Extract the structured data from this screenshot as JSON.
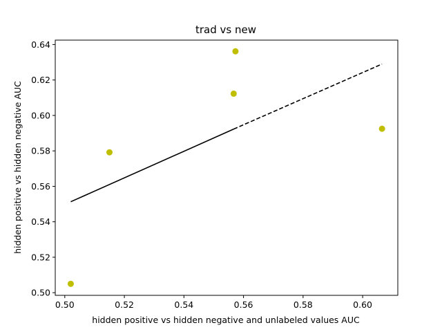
{
  "chart_data": {
    "type": "scatter",
    "title": "trad vs new",
    "xlabel": "hidden positive vs hidden negative and unlabeled values AUC",
    "ylabel": "hidden positive vs hidden negative  AUC",
    "xlim": [
      0.4968,
      0.6118
    ],
    "ylim": [
      0.4985,
      0.6425
    ],
    "xticks": [
      0.5,
      0.52,
      0.54,
      0.56,
      0.58,
      0.6
    ],
    "xtick_labels": [
      "0.50",
      "0.52",
      "0.54",
      "0.56",
      "0.58",
      "0.60"
    ],
    "yticks": [
      0.5,
      0.52,
      0.54,
      0.56,
      0.58,
      0.6,
      0.62,
      0.64
    ],
    "ytick_labels": [
      "0.50",
      "0.52",
      "0.54",
      "0.56",
      "0.58",
      "0.60",
      "0.62",
      "0.64"
    ],
    "grid": false,
    "series": [
      {
        "marker": "circle",
        "color": "#bfbf00",
        "points": [
          {
            "x": 0.502,
            "y": 0.505
          },
          {
            "x": 0.515,
            "y": 0.5792
          },
          {
            "x": 0.5567,
            "y": 0.6123
          },
          {
            "x": 0.5573,
            "y": 0.6362
          },
          {
            "x": 0.6065,
            "y": 0.5925
          }
        ]
      }
    ],
    "fit_line": {
      "color": "#000000",
      "solid_segment": [
        {
          "x": 0.502,
          "y": 0.5513
        },
        {
          "x": 0.5567,
          "y": 0.5923
        }
      ],
      "dashed_segment": [
        {
          "x": 0.5567,
          "y": 0.5923
        },
        {
          "x": 0.6065,
          "y": 0.629
        }
      ]
    }
  }
}
